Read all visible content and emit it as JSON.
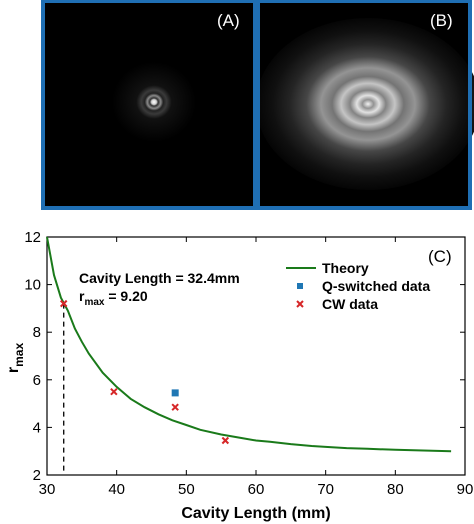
{
  "figure": {
    "panel_a_label": "(A)",
    "panel_b_label": "(B)",
    "panel_border_color": "#1f6fb4"
  },
  "chart_data": {
    "type": "scatter",
    "panel_label": "(C)",
    "xlabel": "Cavity Length (mm)",
    "ylabel_main": "r",
    "ylabel_sub": "max",
    "xlim": [
      30,
      90
    ],
    "ylim": [
      2,
      12
    ],
    "xticks": [
      "30",
      "40",
      "50",
      "60",
      "70",
      "80",
      "90"
    ],
    "yticks": [
      "2",
      "4",
      "6",
      "8",
      "10",
      "12"
    ],
    "grid": false,
    "legend_position": "top-right",
    "annotation": {
      "line1": "Cavity Length = 32.4mm",
      "line2_main": "r",
      "line2_sub": "max",
      "line2_value": " = 9.20",
      "x": 32.4,
      "y": 9.2
    },
    "series": [
      {
        "name": "Theory",
        "kind": "line",
        "color": "#1a7a1a",
        "x": [
          30,
          31,
          32,
          33,
          34,
          35,
          36,
          38,
          40,
          42,
          44,
          46,
          48,
          50,
          52,
          55,
          58,
          60,
          62,
          65,
          68,
          70,
          73,
          76,
          80,
          84,
          88
        ],
        "y": [
          12.0,
          10.4,
          9.45,
          8.9,
          8.15,
          7.6,
          7.1,
          6.3,
          5.7,
          5.2,
          4.85,
          4.55,
          4.3,
          4.1,
          3.9,
          3.7,
          3.55,
          3.45,
          3.4,
          3.3,
          3.22,
          3.18,
          3.13,
          3.1,
          3.06,
          3.03,
          3.0
        ]
      },
      {
        "name": "Q-switched data",
        "kind": "square",
        "color": "#1f77b4",
        "x": [
          48.4
        ],
        "y": [
          5.45
        ]
      },
      {
        "name": "CW data",
        "kind": "x",
        "color": "#d62728",
        "x": [
          32.4,
          39.6,
          48.4,
          55.6
        ],
        "y": [
          9.2,
          5.5,
          4.85,
          3.45
        ]
      }
    ]
  }
}
